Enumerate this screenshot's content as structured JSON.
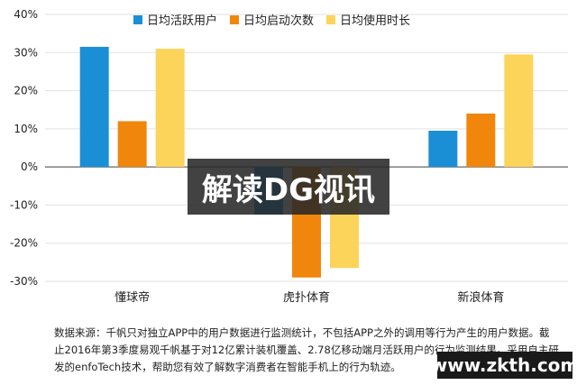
{
  "chart_data": {
    "type": "bar",
    "categories": [
      "懂球帝",
      "虎扑体育",
      "新浪体育"
    ],
    "series": [
      {
        "name": "日均活跃用户",
        "values": [
          31.5,
          -12.5,
          9.5
        ],
        "color": "#1b8fd6"
      },
      {
        "name": "日均启动次数",
        "values": [
          12,
          -29,
          14
        ],
        "color": "#f0870c"
      },
      {
        "name": "日均使用时长",
        "values": [
          31,
          -26.5,
          29.5
        ],
        "color": "#fcd45a"
      }
    ],
    "ylim": [
      -30,
      40
    ],
    "yticks": [
      "-30%",
      "-20%",
      "-10%",
      "0%",
      "10%",
      "20%",
      "30%",
      "40%"
    ],
    "legend_position": "top"
  },
  "footnote": "数据来源：千帆只对独立APP中的用户数据进行监测统计，不包括APP之外的调用等行为产生的用户数据。截止2016年第3季度易观千帆基于对12亿累计装机覆盖、2.78亿移动端月活跃用户的行为监测结果。采用自主研发的enfoTech技术，帮助您有效了解数字消费者在智能手机上的行为轨迹。",
  "overlay_title": "解读DG视讯",
  "source_badge": "www.zkth.com"
}
